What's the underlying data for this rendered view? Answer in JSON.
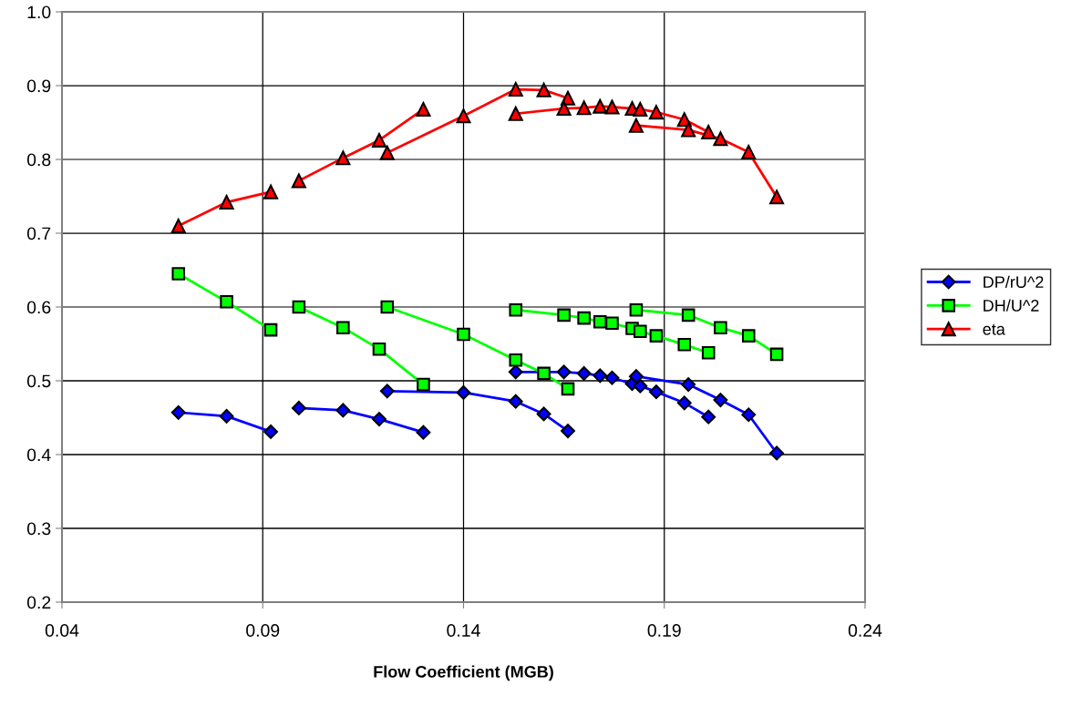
{
  "chart_data": {
    "type": "line",
    "xlabel": "Flow Coefficient (MGB)",
    "xlim": [
      0.04,
      0.24
    ],
    "xticks": [
      0.04,
      0.09,
      0.14,
      0.19,
      0.24
    ],
    "ylim": [
      0.2,
      1.0
    ],
    "yticks": [
      0.2,
      0.3,
      0.4,
      0.5,
      0.6,
      0.7,
      0.8,
      0.9,
      {
        "value": 1.0,
        "label": "1.0"
      }
    ],
    "grid": true,
    "legend": "right",
    "series": [
      {
        "name": "DP/rU^2",
        "color": "#0000ff",
        "marker": "diamond",
        "x": [
          0.069,
          0.081,
          0.092,
          null,
          0.099,
          0.11,
          0.119,
          0.13,
          null,
          0.121,
          0.14,
          0.153,
          0.16,
          0.166,
          null,
          0.153,
          0.165,
          0.17,
          0.174,
          0.177,
          0.182,
          0.184,
          0.188,
          0.195,
          0.201,
          null,
          0.183,
          0.196,
          0.204,
          0.211,
          0.218
        ],
        "values": [
          0.457,
          0.452,
          0.431,
          null,
          0.463,
          0.46,
          0.448,
          0.43,
          null,
          0.486,
          0.484,
          0.472,
          0.455,
          0.432,
          null,
          0.512,
          0.512,
          0.51,
          0.507,
          0.504,
          0.496,
          0.493,
          0.485,
          0.47,
          0.451,
          null,
          0.506,
          0.495,
          0.474,
          0.454,
          0.402
        ]
      },
      {
        "name": "DH/U^2",
        "color": "#00ff00",
        "marker": "square",
        "x": [
          0.069,
          0.081,
          0.092,
          null,
          0.099,
          0.11,
          0.119,
          0.13,
          null,
          0.121,
          0.14,
          0.153,
          0.16,
          0.166,
          null,
          0.153,
          0.165,
          0.17,
          0.174,
          0.177,
          0.182,
          0.184,
          0.188,
          0.195,
          0.201,
          null,
          0.183,
          0.196,
          0.204,
          0.211,
          0.218
        ],
        "values": [
          0.645,
          0.607,
          0.569,
          null,
          0.6,
          0.572,
          0.543,
          0.495,
          null,
          0.6,
          0.563,
          0.528,
          0.51,
          0.489,
          null,
          0.596,
          0.589,
          0.585,
          0.58,
          0.578,
          0.571,
          0.567,
          0.561,
          0.549,
          0.538,
          null,
          0.596,
          0.589,
          0.572,
          0.561,
          0.536
        ]
      },
      {
        "name": "eta",
        "color": "#ff0000",
        "marker": "triangle",
        "x": [
          0.069,
          0.081,
          0.092,
          null,
          0.099,
          0.11,
          0.119,
          0.13,
          null,
          0.121,
          0.14,
          0.153,
          0.16,
          0.166,
          null,
          0.153,
          0.165,
          0.17,
          0.174,
          0.177,
          0.182,
          0.184,
          0.188,
          0.195,
          0.201,
          null,
          0.183,
          0.196,
          0.204,
          0.211,
          0.218
        ],
        "values": [
          0.71,
          0.742,
          0.756,
          null,
          0.771,
          0.802,
          0.826,
          0.868,
          null,
          0.809,
          0.859,
          0.895,
          0.894,
          0.883,
          null,
          0.862,
          0.869,
          0.87,
          0.872,
          0.871,
          0.869,
          0.868,
          0.864,
          0.854,
          0.837,
          null,
          0.846,
          0.84,
          0.828,
          0.81,
          0.749
        ]
      }
    ]
  }
}
